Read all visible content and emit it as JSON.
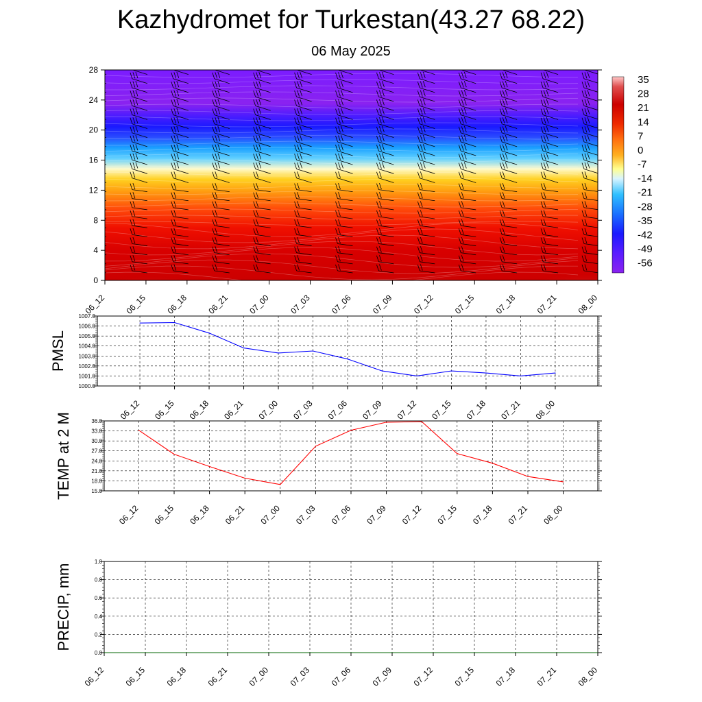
{
  "header": {
    "title": "Kazhydromet for Turkestan(43.27 68.22)",
    "date": "06 May 2025"
  },
  "chart_data": [
    {
      "type": "heatmap",
      "name": "upper-air temperature cross-section",
      "x_ticks": [
        "06_12",
        "06_15",
        "06_18",
        "06_21",
        "07_00",
        "07_03",
        "07_06",
        "07_09",
        "07_12",
        "07_15",
        "07_18",
        "07_21",
        "08_00"
      ],
      "y_ticks": [
        0,
        4,
        8,
        12,
        16,
        20,
        24,
        28
      ],
      "ylim": [
        0,
        28
      ],
      "colorbar": {
        "labels": [
          "35",
          "28",
          "21",
          "14",
          "7",
          "0",
          "-7",
          "-14",
          "-21",
          "-28",
          "-35",
          "-42",
          "-49",
          "-56"
        ],
        "range": [
          -60,
          38
        ]
      },
      "overlay": "wind barbs"
    },
    {
      "type": "line",
      "ylabel": "PMSL",
      "x_ticks": [
        "06_12",
        "06_15",
        "06_18",
        "06_21",
        "07_00",
        "07_03",
        "07_06",
        "07_09",
        "07_12",
        "07_15",
        "07_18",
        "07_21",
        "08_00"
      ],
      "y_ticks": [
        "1000.0",
        "1001.0",
        "1002.0",
        "1003.0",
        "1004.0",
        "1005.0",
        "1006.0",
        "1007.0"
      ],
      "ylim": [
        1000,
        1007
      ],
      "values": [
        1006.3,
        1006.35,
        1005.3,
        1003.8,
        1003.3,
        1003.5,
        1002.7,
        1001.5,
        1001.0,
        1001.5,
        1001.3,
        1001.0,
        1001.3
      ],
      "color": "#0000ff"
    },
    {
      "type": "line",
      "ylabel": "TEMP at 2 M",
      "x_ticks": [
        "06_12",
        "06_15",
        "06_18",
        "06_21",
        "07_00",
        "07_03",
        "07_06",
        "07_09",
        "07_12",
        "07_15",
        "07_18",
        "07_21",
        "08_00"
      ],
      "y_ticks": [
        "15.0",
        "18.0",
        "21.0",
        "24.0",
        "27.0",
        "30.0",
        "33.0",
        "36.0"
      ],
      "ylim": [
        15,
        36
      ],
      "values": [
        33.2,
        26.0,
        22.3,
        18.8,
        16.9,
        28.4,
        33.2,
        35.6,
        35.8,
        26.2,
        23.3,
        19.3,
        17.7
      ],
      "color": "#ff0000"
    },
    {
      "type": "line",
      "ylabel": "PRECIP, mm",
      "x_ticks": [
        "06_12",
        "06_15",
        "06_18",
        "06_21",
        "07_00",
        "07_03",
        "07_06",
        "07_09",
        "07_12",
        "07_15",
        "07_18",
        "07_21",
        "08_00"
      ],
      "y_ticks": [
        "0.0",
        "0.2",
        "0.4",
        "0.6",
        "0.8",
        "1.0"
      ],
      "ylim": [
        0,
        1
      ],
      "values": [
        0,
        0,
        0,
        0,
        0,
        0,
        0,
        0,
        0,
        0,
        0,
        0,
        0
      ],
      "color": "#006400"
    }
  ]
}
